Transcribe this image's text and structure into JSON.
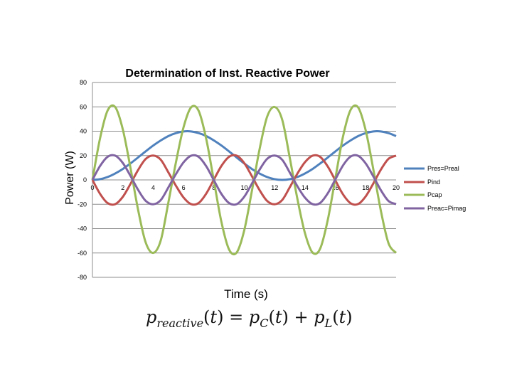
{
  "chart_data": {
    "type": "line",
    "title": "Determination of Inst. Reactive Power",
    "xlabel": "Time (s)",
    "ylabel": "Power (W)",
    "xlim": [
      0,
      20
    ],
    "ylim": [
      -80,
      80
    ],
    "x_ticks": [
      0,
      2,
      4,
      6,
      8,
      10,
      12,
      14,
      16,
      18,
      20
    ],
    "y_ticks": [
      80,
      60,
      40,
      20,
      0,
      -20,
      -40,
      -60,
      -80
    ],
    "grid": "horizontal",
    "legend_position": "right",
    "x": [
      0,
      0.5,
      1,
      1.5,
      2,
      2.5,
      3,
      3.5,
      4,
      4.5,
      5,
      5.5,
      6,
      6.5,
      7,
      7.5,
      8,
      8.5,
      9,
      9.5,
      10,
      10.5,
      11,
      11.5,
      12,
      12.5,
      13,
      13.5,
      14,
      14.5,
      15,
      15.5,
      16,
      16.5,
      17,
      17.5,
      18,
      18.5,
      19,
      19.5,
      20
    ],
    "series": [
      {
        "name": "Pres=Preal",
        "color": "#4F81BD",
        "values": [
          0,
          0.6,
          2.4,
          5.3,
          9.0,
          13.5,
          18.4,
          23.4,
          28.2,
          32.4,
          36.0,
          38.4,
          39.8,
          39.8,
          38.4,
          36.0,
          32.4,
          28.2,
          23.4,
          18.4,
          13.5,
          9.0,
          5.3,
          2.4,
          0.6,
          0,
          0.6,
          2.4,
          5.3,
          9.0,
          13.5,
          18.4,
          23.4,
          28.2,
          32.4,
          36.0,
          38.4,
          39.8,
          39.8,
          38.4,
          36.0
        ]
      },
      {
        "name": "Pind",
        "color": "#C0504D",
        "values": [
          0,
          -11.4,
          -19.0,
          -19.9,
          -13.9,
          -3.4,
          8.0,
          17.1,
          20.0,
          16.6,
          6.2,
          -4.8,
          -14.4,
          -19.9,
          -18.9,
          -11.1,
          0.3,
          11.6,
          19.0,
          19.9,
          13.8,
          3.1,
          -8.2,
          -17.2,
          -20.0,
          -16.5,
          -6.0,
          5.2,
          14.6,
          19.9,
          18.9,
          11.0,
          -0.4,
          -11.8,
          -19.1,
          -19.8,
          -13.5,
          -2.9,
          8.5,
          17.3,
          19.9
        ]
      },
      {
        "name": "Pcap",
        "color": "#9BBB59",
        "values": [
          0,
          34.1,
          57.0,
          59.8,
          41.5,
          10.2,
          -24.1,
          -51.1,
          -59.9,
          -49.7,
          -18.6,
          14.5,
          43.2,
          59.6,
          56.6,
          33.3,
          -0.8,
          -34.8,
          -57.2,
          -59.6,
          -41.3,
          -9.2,
          24.7,
          51.7,
          59.9,
          49.4,
          18.0,
          -15.6,
          -43.8,
          -59.7,
          -56.4,
          -32.9,
          1.3,
          35.4,
          57.4,
          59.5,
          40.6,
          8.7,
          -25.5,
          -52.0,
          -59.9
        ]
      },
      {
        "name": "Preac=Pimag",
        "color": "#8064A2",
        "values": [
          0,
          11.4,
          19.0,
          19.9,
          13.9,
          3.4,
          -8.0,
          -17.1,
          -20.0,
          -16.6,
          -6.2,
          4.8,
          14.4,
          19.9,
          18.9,
          11.1,
          -0.3,
          -11.6,
          -19.0,
          -19.9,
          -13.8,
          -3.1,
          8.2,
          17.2,
          20.0,
          16.5,
          6.0,
          -5.2,
          -14.6,
          -19.9,
          -18.9,
          -11.0,
          0.4,
          11.8,
          19.1,
          19.8,
          13.5,
          2.9,
          -8.5,
          -17.3,
          -19.9
        ]
      }
    ]
  }
}
